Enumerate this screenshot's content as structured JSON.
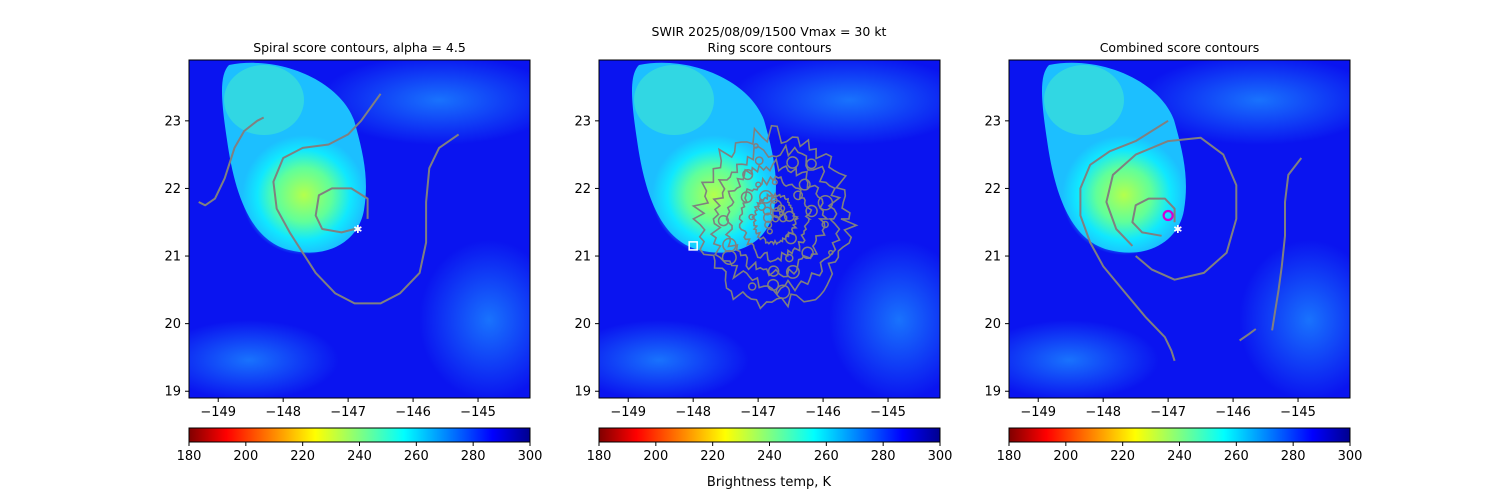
{
  "figure": {
    "suptitle_line1": "SWIR  2025/08/09/1500    Vmax = 30 kt",
    "colorbar_label": "Brightness temp, K"
  },
  "colors": {
    "contour": "#808080",
    "marker_ring": "#d400d4",
    "cold_scale": [
      "#800000",
      "#ff0000",
      "#ff8000",
      "#ffff00",
      "#80ff80",
      "#00ffff",
      "#0080ff",
      "#0000ff",
      "#00008f"
    ]
  },
  "chart_data": [
    {
      "type": "heatmap",
      "title": "Spiral score contours, alpha =  4.5",
      "x_ticks": [
        -149,
        -148,
        -147,
        -146,
        -145
      ],
      "y_ticks": [
        19,
        20,
        21,
        22,
        23
      ],
      "xlim": [
        -149.45,
        -144.2
      ],
      "ylim": [
        18.9,
        23.9
      ],
      "colorbar": {
        "ticks": [
          180,
          200,
          220,
          240,
          260,
          280,
          300
        ],
        "range": [
          180,
          300
        ],
        "colormap": "jet_r"
      },
      "overlay": "contour",
      "contours": [
        [
          [
            -149.3,
            21.8
          ],
          [
            -149.2,
            21.75
          ],
          [
            -149.05,
            21.85
          ],
          [
            -148.9,
            22.15
          ],
          [
            -148.75,
            22.6
          ],
          [
            -148.6,
            22.85
          ],
          [
            -148.4,
            23.0
          ],
          [
            -148.3,
            23.05
          ]
        ],
        [
          [
            -146.5,
            23.4
          ],
          [
            -146.8,
            23.0
          ],
          [
            -147.0,
            22.8
          ],
          [
            -147.3,
            22.65
          ],
          [
            -147.7,
            22.6
          ],
          [
            -148.0,
            22.45
          ],
          [
            -148.15,
            22.1
          ],
          [
            -148.1,
            21.7
          ],
          [
            -147.9,
            21.35
          ],
          [
            -147.7,
            21.05
          ],
          [
            -147.5,
            20.75
          ],
          [
            -147.2,
            20.45
          ],
          [
            -146.9,
            20.3
          ],
          [
            -146.5,
            20.3
          ],
          [
            -146.2,
            20.45
          ],
          [
            -145.9,
            20.75
          ],
          [
            -145.8,
            21.2
          ],
          [
            -145.8,
            21.8
          ],
          [
            -145.75,
            22.3
          ],
          [
            -145.6,
            22.6
          ],
          [
            -145.3,
            22.8
          ]
        ],
        [
          [
            -146.7,
            21.55
          ],
          [
            -146.7,
            21.85
          ],
          [
            -146.95,
            22.0
          ],
          [
            -147.25,
            22.0
          ],
          [
            -147.45,
            21.9
          ],
          [
            -147.5,
            21.6
          ],
          [
            -147.4,
            21.4
          ],
          [
            -147.1,
            21.35
          ],
          [
            -146.9,
            21.4
          ]
        ]
      ],
      "markers": [
        {
          "x": -146.85,
          "y": 21.4,
          "symbol": "star",
          "color": "#ffffff"
        }
      ]
    },
    {
      "type": "heatmap",
      "title": "Ring score contours",
      "x_ticks": [
        -149,
        -148,
        -147,
        -146,
        -145
      ],
      "y_ticks": [
        19,
        20,
        21,
        22,
        23
      ],
      "xlim": [
        -149.45,
        -144.2
      ],
      "ylim": [
        18.9,
        23.9
      ],
      "colorbar": {
        "ticks": [
          180,
          200,
          220,
          240,
          260,
          280,
          300
        ],
        "range": [
          180,
          300
        ],
        "colormap": "jet_r"
      },
      "overlay": "contour",
      "ring_contour": {
        "center": [
          -146.75,
          21.55
        ],
        "rx": 1.15,
        "ry": 1.25
      },
      "markers": [
        {
          "x": -148.0,
          "y": 21.15,
          "symbol": "square",
          "color": "#ffffff"
        }
      ]
    },
    {
      "type": "heatmap",
      "title": "Combined score contours",
      "x_ticks": [
        -149,
        -148,
        -147,
        -146,
        -145
      ],
      "y_ticks": [
        19,
        20,
        21,
        22,
        23
      ],
      "xlim": [
        -149.45,
        -144.2
      ],
      "ylim": [
        18.9,
        23.9
      ],
      "colorbar": {
        "ticks": [
          180,
          200,
          220,
          240,
          260,
          280,
          300
        ],
        "range": [
          180,
          300
        ],
        "colormap": "jet_r"
      },
      "overlay": "contour",
      "contours": [
        [
          [
            -147.0,
            23.0
          ],
          [
            -147.5,
            22.7
          ],
          [
            -147.9,
            22.55
          ],
          [
            -148.2,
            22.35
          ],
          [
            -148.35,
            22.0
          ],
          [
            -148.35,
            21.6
          ],
          [
            -148.2,
            21.2
          ],
          [
            -148.0,
            20.85
          ],
          [
            -147.7,
            20.5
          ],
          [
            -147.35,
            20.1
          ],
          [
            -147.05,
            19.8
          ],
          [
            -146.95,
            19.6
          ],
          [
            -146.9,
            19.45
          ]
        ],
        [
          [
            -146.9,
            21.5
          ],
          [
            -146.9,
            21.7
          ],
          [
            -147.05,
            21.85
          ],
          [
            -147.3,
            21.85
          ],
          [
            -147.5,
            21.75
          ],
          [
            -147.55,
            21.5
          ],
          [
            -147.4,
            21.35
          ],
          [
            -147.1,
            21.3
          ]
        ],
        [
          [
            -147.55,
            21.15
          ],
          [
            -147.8,
            21.4
          ],
          [
            -147.95,
            21.8
          ],
          [
            -147.85,
            22.2
          ],
          [
            -147.5,
            22.5
          ],
          [
            -147.0,
            22.7
          ],
          [
            -146.5,
            22.75
          ],
          [
            -146.15,
            22.5
          ],
          [
            -145.95,
            22.05
          ],
          [
            -145.95,
            21.55
          ],
          [
            -146.1,
            21.05
          ],
          [
            -146.45,
            20.75
          ],
          [
            -146.9,
            20.65
          ],
          [
            -147.25,
            20.8
          ],
          [
            -147.5,
            21.0
          ]
        ],
        [
          [
            -144.95,
            22.45
          ],
          [
            -145.15,
            22.2
          ],
          [
            -145.2,
            21.8
          ],
          [
            -145.2,
            21.3
          ],
          [
            -145.25,
            20.85
          ],
          [
            -145.3,
            20.5
          ],
          [
            -145.35,
            20.2
          ],
          [
            -145.4,
            19.9
          ]
        ],
        [
          [
            -145.9,
            19.75
          ],
          [
            -145.75,
            19.85
          ],
          [
            -145.65,
            19.92
          ]
        ]
      ],
      "markers": [
        {
          "x": -147.0,
          "y": 21.6,
          "symbol": "circle",
          "color": "#d400d4"
        },
        {
          "x": -146.85,
          "y": 21.4,
          "symbol": "star",
          "color": "#ffffff"
        }
      ]
    }
  ]
}
